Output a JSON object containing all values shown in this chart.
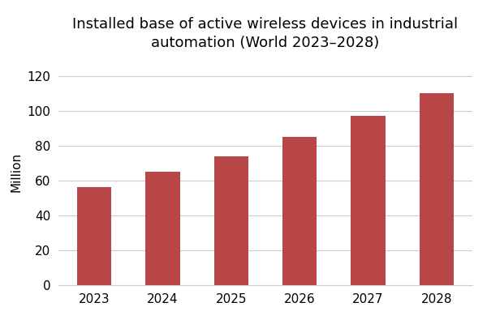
{
  "title": "Installed base of active wireless devices in industrial\nautomation (World 2023–2028)",
  "xlabel": "",
  "ylabel": "Million",
  "categories": [
    "2023",
    "2024",
    "2025",
    "2026",
    "2027",
    "2028"
  ],
  "values": [
    56,
    65,
    74,
    85,
    97,
    110
  ],
  "bar_color": "#b94646",
  "ylim": [
    0,
    130
  ],
  "yticks": [
    0,
    20,
    40,
    60,
    80,
    100,
    120
  ],
  "background_color": "#ffffff",
  "title_fontsize": 13,
  "axis_fontsize": 11,
  "tick_fontsize": 11,
  "bar_width": 0.5,
  "grid_color": "#cccccc",
  "grid_linewidth": 0.8
}
